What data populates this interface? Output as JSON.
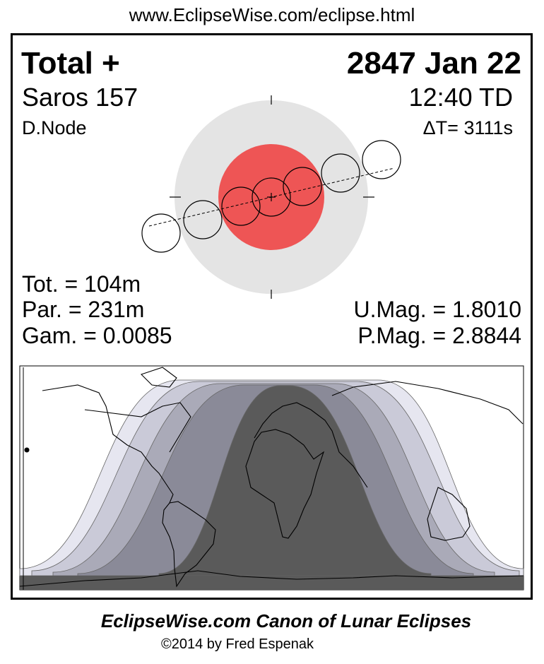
{
  "header": {
    "url": "www.EclipseWise.com/eclipse.html"
  },
  "eclipse": {
    "type": "Total  +",
    "date": "2847 Jan 22",
    "saros": "Saros 157",
    "time": "12:40 TD",
    "node": "D.Node",
    "delta_t": "ΔT=   3111s",
    "totality": "Tot. = 104m",
    "partial": "Par. = 231m",
    "gamma": "Gam. = 0.0085",
    "umbral_mag": "U.Mag. = 1.8010",
    "penumbral_mag": "P.Mag. = 2.8844"
  },
  "colors": {
    "penumbra": "#e4e4e4",
    "umbra": "#ee5555",
    "map_bands": [
      "#e6e6f0",
      "#cacad8",
      "#aaaab8",
      "#8a8a98",
      "#5a5a5a"
    ]
  },
  "footer": {
    "title": "EclipseWise.com Canon of Lunar Eclipses",
    "copyright": "©2014 by Fred Espenak"
  }
}
